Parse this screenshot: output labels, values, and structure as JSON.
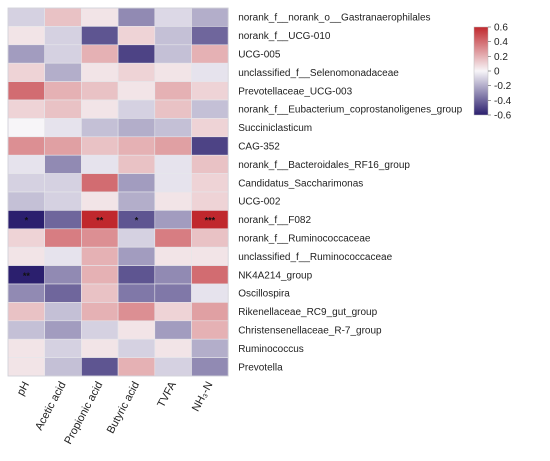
{
  "chart_data": {
    "type": "heatmap",
    "title": "",
    "rows": [
      "norank_f__norank_o__Gastranaerophilales",
      "norank_f__UCG-010",
      "UCG-005",
      "unclassified_f__Selenomonadaceae",
      "Prevotellaceae_UCG-003",
      "norank_f__Eubacterium_coprostanoligenes_group",
      "Succiniclasticum",
      "CAG-352",
      "norank_f__Bacteroidales_RF16_group",
      "Candidatus_Saccharimonas",
      "UCG-002",
      "norank_f__F082",
      "norank_f__Ruminococcaceae",
      "unclassified_f__Ruminococcaceae",
      "NK4A214_group",
      "Oscillospira",
      "Rikenellaceae_RC9_gut_group",
      "Christensenellaceae_R-7_group",
      "Ruminococcus",
      "Prevotella"
    ],
    "columns": [
      "pH",
      "Acetic acid",
      "Propionic acid",
      "Butyric acid",
      "TVFA",
      "NH₃-N"
    ],
    "values": [
      [
        -0.1,
        0.15,
        0.05,
        -0.3,
        -0.08,
        -0.2
      ],
      [
        0.05,
        -0.1,
        -0.45,
        0.1,
        -0.15,
        -0.4
      ],
      [
        -0.25,
        -0.1,
        0.2,
        -0.5,
        -0.15,
        0.2
      ],
      [
        0.1,
        -0.2,
        0.05,
        0.1,
        0.05,
        -0.05
      ],
      [
        0.4,
        0.2,
        0.15,
        0.05,
        0.2,
        0.1
      ],
      [
        0.1,
        0.15,
        0.05,
        -0.1,
        0.15,
        -0.15
      ],
      [
        0.0,
        -0.05,
        -0.15,
        -0.2,
        -0.15,
        0.1
      ],
      [
        0.3,
        0.25,
        0.15,
        0.2,
        0.25,
        -0.5
      ],
      [
        -0.05,
        -0.3,
        -0.05,
        0.15,
        -0.05,
        0.15
      ],
      [
        -0.1,
        -0.1,
        0.4,
        -0.25,
        -0.05,
        0.1
      ],
      [
        -0.15,
        -0.1,
        0.05,
        -0.2,
        0.05,
        0.1
      ],
      [
        -0.6,
        -0.4,
        0.6,
        -0.45,
        -0.25,
        0.65
      ],
      [
        0.1,
        0.35,
        0.3,
        -0.1,
        0.35,
        0.15
      ],
      [
        0.05,
        -0.05,
        0.2,
        -0.25,
        0.05,
        0.05
      ],
      [
        -0.65,
        -0.3,
        0.2,
        -0.45,
        -0.3,
        0.4
      ],
      [
        -0.3,
        -0.4,
        0.15,
        -0.35,
        -0.35,
        -0.05
      ],
      [
        0.15,
        -0.15,
        0.2,
        0.3,
        0.1,
        0.25
      ],
      [
        -0.15,
        -0.25,
        -0.1,
        0.05,
        -0.25,
        0.2
      ],
      [
        0.05,
        -0.1,
        0.05,
        -0.1,
        0.05,
        -0.2
      ],
      [
        0.05,
        -0.15,
        -0.45,
        0.2,
        -0.1,
        -0.3
      ]
    ],
    "annotations": [
      {
        "row": 11,
        "col": 0,
        "text": "*"
      },
      {
        "row": 11,
        "col": 2,
        "text": "**"
      },
      {
        "row": 11,
        "col": 3,
        "text": "*"
      },
      {
        "row": 11,
        "col": 5,
        "text": "***"
      },
      {
        "row": 14,
        "col": 0,
        "text": "**"
      }
    ],
    "colorbar": {
      "min": -0.6,
      "max": 0.6,
      "ticks": [
        "0.6",
        "0.4",
        "0.2",
        "0",
        "-0.2",
        "-0.4",
        "-0.6"
      ],
      "high_color": "#c0282d",
      "mid_color": "#f7f5f8",
      "low_color": "#2b1f6e"
    },
    "grid": true
  }
}
